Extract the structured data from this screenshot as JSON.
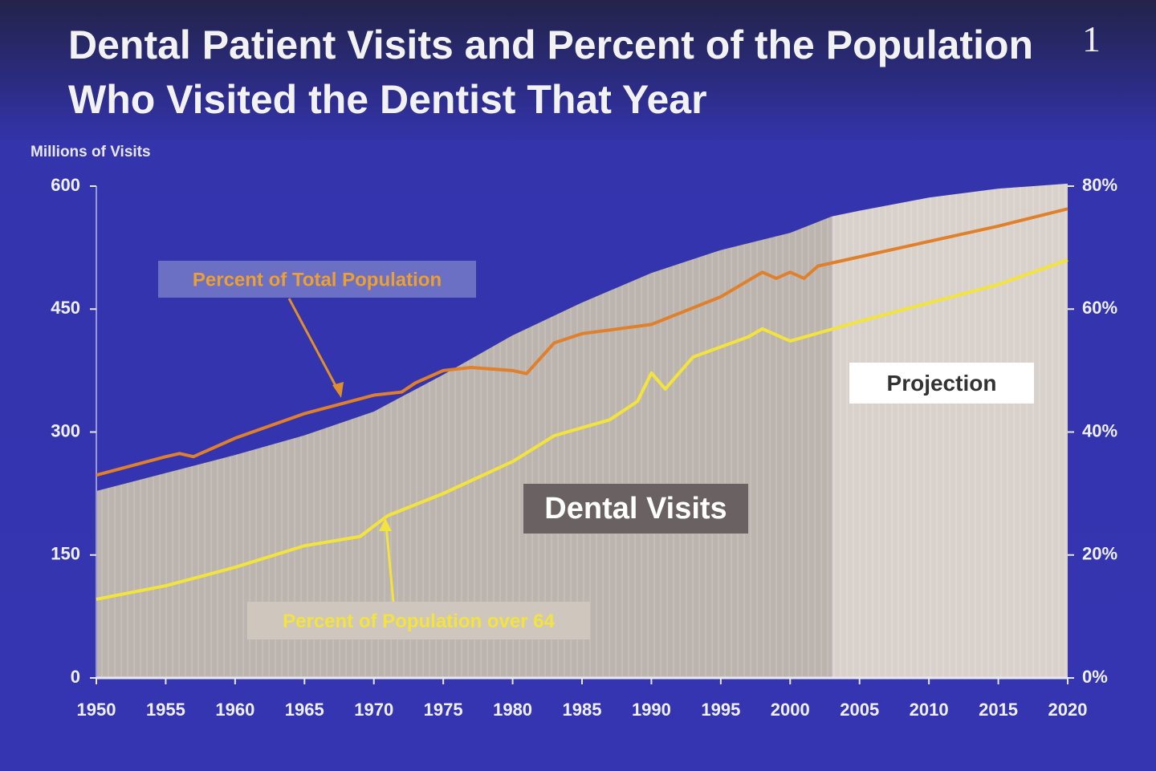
{
  "page_number": "1",
  "chart_data": {
    "type": "combo",
    "title": "Dental Patient Visits and Percent of the Population Who Visited the Dentist That Year",
    "y_label": "Millions of Visits",
    "xlim": [
      1950,
      2020
    ],
    "xticks": [
      1950,
      1955,
      1960,
      1965,
      1970,
      1975,
      1980,
      1985,
      1990,
      1995,
      2000,
      2005,
      2010,
      2015,
      2020
    ],
    "ylim": [
      0,
      600
    ],
    "yticks": [
      0,
      150,
      300,
      450,
      600
    ],
    "y2lim": [
      0,
      80
    ],
    "y2ticks": [
      {
        "value": 0,
        "label": "0%"
      },
      {
        "value": 20,
        "label": "20%"
      },
      {
        "value": 40,
        "label": "40%"
      },
      {
        "value": 60,
        "label": "60%"
      },
      {
        "value": 80,
        "label": "80%"
      }
    ],
    "series": [
      {
        "name": "Dental Visits",
        "type": "area",
        "color": "#bcb4ae",
        "x": [
          1950,
          1955,
          1960,
          1965,
          1970,
          1975,
          1980,
          1985,
          1990,
          1995,
          2000,
          2003
        ],
        "values": [
          228,
          250,
          272,
          296,
          325,
          370,
          418,
          458,
          494,
          522,
          543,
          563
        ]
      },
      {
        "name": "Projection",
        "type": "area",
        "color": "#d9d1cc",
        "x": [
          2003,
          2005,
          2010,
          2015,
          2020
        ],
        "values": [
          563,
          570,
          586,
          597,
          603
        ]
      },
      {
        "name": "Percent of Total Population",
        "type": "line",
        "color": "#e0802a",
        "axis": "y2",
        "x": [
          1950,
          1955,
          1956,
          1957,
          1960,
          1965,
          1970,
          1972,
          1973,
          1975,
          1977,
          1980,
          1981,
          1983,
          1985,
          1990,
          1995,
          1998,
          1999,
          2000,
          2001,
          2002,
          2005,
          2010,
          2015,
          2020
        ],
        "values": [
          33,
          36,
          36.5,
          36,
          39,
          43,
          46,
          46.5,
          48,
          50,
          50.5,
          50,
          49.5,
          54.5,
          56,
          57.5,
          62,
          66,
          65,
          66,
          65,
          67,
          68.5,
          71,
          73.5,
          76.3
        ]
      },
      {
        "name": "Percent of Population over 64",
        "type": "line",
        "color": "#f2e43c",
        "axis": "y2",
        "x": [
          1950,
          1955,
          1960,
          1965,
          1969,
          1971,
          1975,
          1980,
          1983,
          1987,
          1989,
          1990,
          1991,
          1993,
          1997,
          1998,
          2000,
          2005,
          2010,
          2015,
          2020
        ],
        "values": [
          12.8,
          15,
          18,
          21.5,
          23,
          26.4,
          30,
          35.2,
          39.4,
          42,
          45,
          49.6,
          47,
          52.2,
          55.5,
          56.8,
          54.8,
          58,
          61,
          64,
          68
        ]
      }
    ],
    "annotations": [
      "Percent of Total Population",
      "Percent of Population over 64",
      "Dental Visits",
      "Projection"
    ]
  }
}
